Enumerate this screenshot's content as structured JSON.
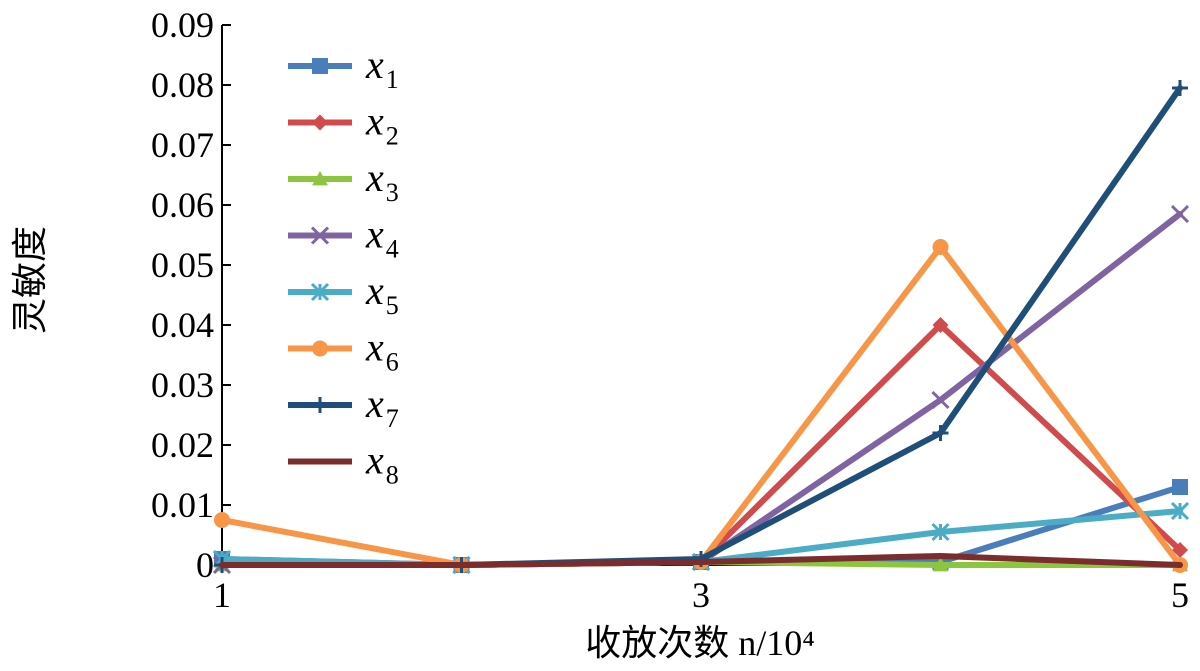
{
  "chart_data": {
    "type": "line",
    "xlabel": "收放次数 n/10⁴",
    "ylabel": "灵敏度",
    "x": [
      1,
      2,
      3,
      4,
      5
    ],
    "xticks": [
      "1",
      "3",
      "5"
    ],
    "xtick_values": [
      1,
      3,
      5
    ],
    "xlim": [
      1,
      5
    ],
    "ylim": [
      0,
      0.09
    ],
    "yticks": [
      "0",
      "0.01",
      "0.02",
      "0.03",
      "0.04",
      "0.05",
      "0.06",
      "0.07",
      "0.08",
      "0.09"
    ],
    "ytick_values": [
      0,
      0.01,
      0.02,
      0.03,
      0.04,
      0.05,
      0.06,
      0.07,
      0.08,
      0.09
    ],
    "grid": false,
    "legend_position": "top-left",
    "series": [
      {
        "name": "x",
        "sub": "1",
        "color": "#4a7ebb",
        "marker": "square",
        "values": [
          0.001,
          0.0,
          0.0005,
          0.0005,
          0.013
        ]
      },
      {
        "name": "x",
        "sub": "2",
        "color": "#d04b4b",
        "marker": "diamond",
        "values": [
          0.0,
          0.0,
          0.0005,
          0.04,
          0.0025
        ]
      },
      {
        "name": "x",
        "sub": "3",
        "color": "#8cc63f",
        "marker": "triangle",
        "values": [
          0.0,
          0.0,
          0.0005,
          0.0,
          0.0
        ]
      },
      {
        "name": "x",
        "sub": "4",
        "color": "#8064a2",
        "marker": "x",
        "values": [
          0.0,
          0.0,
          0.0005,
          0.0275,
          0.0585
        ]
      },
      {
        "name": "x",
        "sub": "5",
        "color": "#4bacc6",
        "marker": "star",
        "values": [
          0.001,
          0.0,
          0.0005,
          0.0055,
          0.009
        ]
      },
      {
        "name": "x",
        "sub": "6",
        "color": "#f79646",
        "marker": "circle",
        "values": [
          0.0075,
          0.0,
          0.0005,
          0.053,
          0.0
        ]
      },
      {
        "name": "x",
        "sub": "7",
        "color": "#1f4e79",
        "marker": "plus",
        "values": [
          0.0,
          0.0,
          0.001,
          0.022,
          0.0795
        ]
      },
      {
        "name": "x",
        "sub": "8",
        "color": "#7b2c2c",
        "marker": "none",
        "values": [
          0.0,
          0.0,
          0.0005,
          0.0015,
          0.0
        ]
      }
    ]
  }
}
